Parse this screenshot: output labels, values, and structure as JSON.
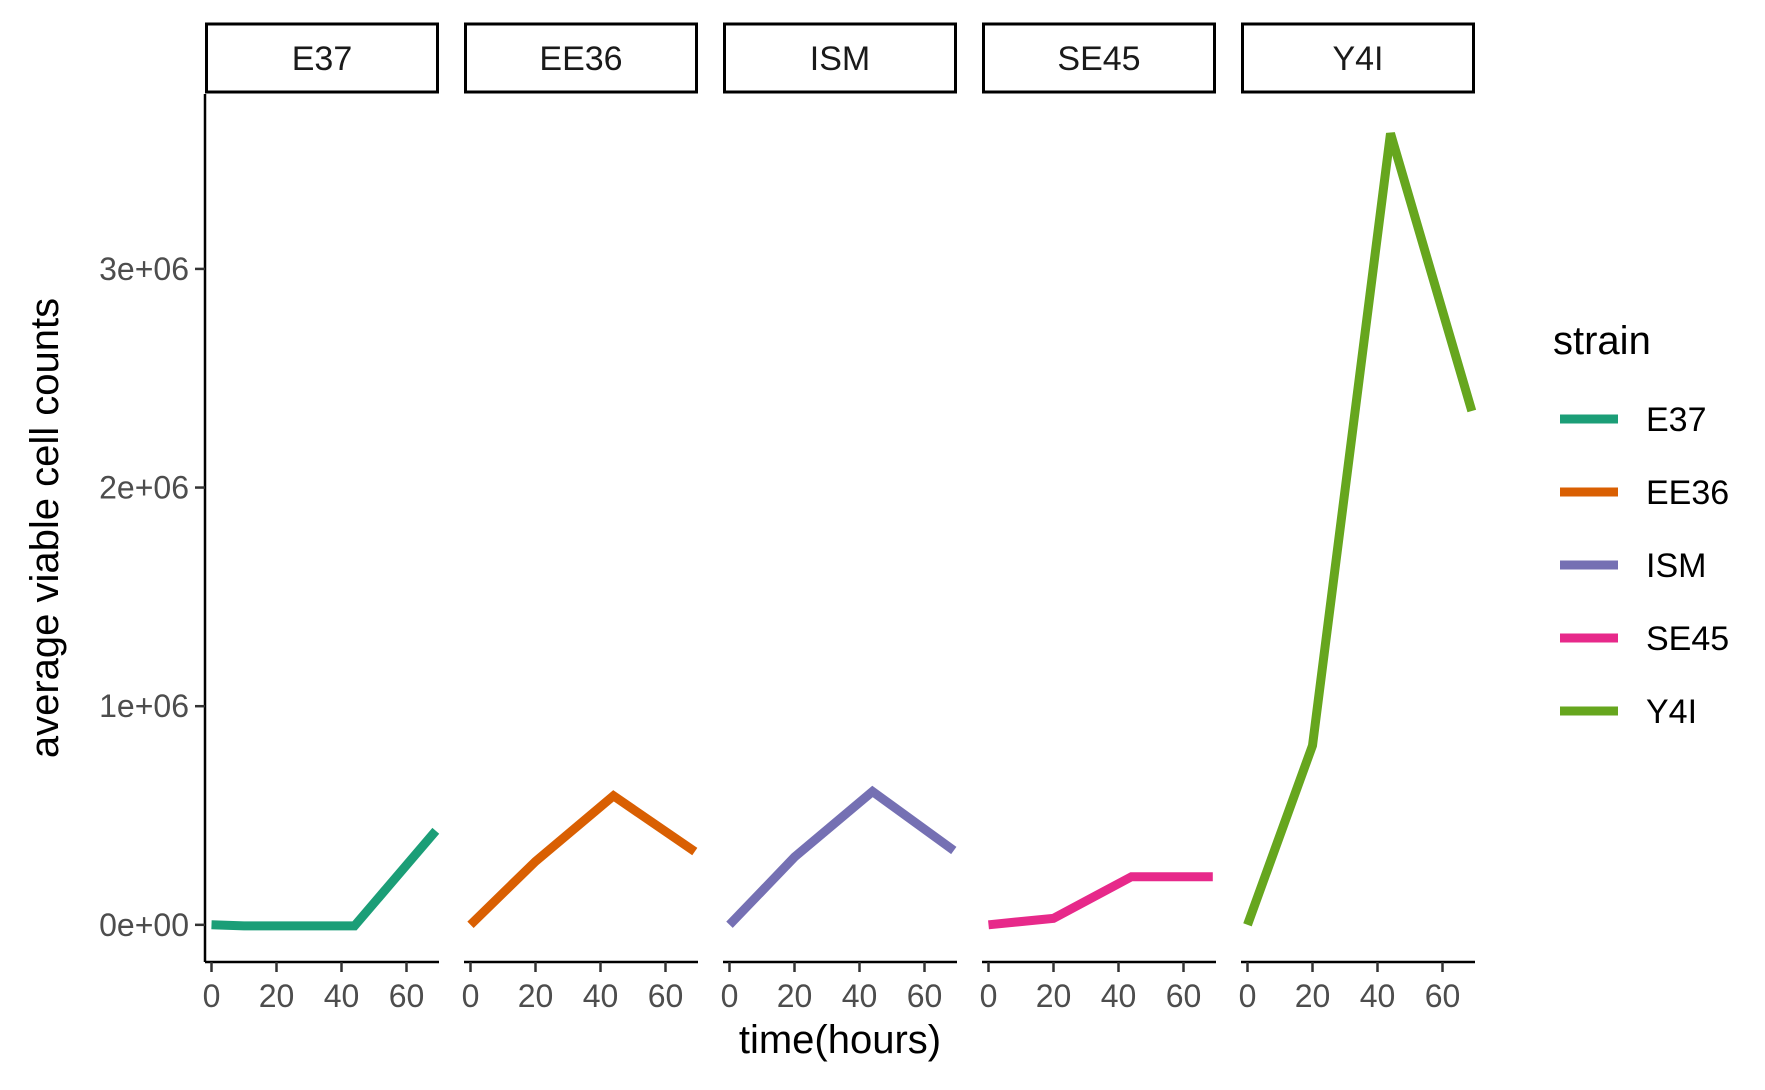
{
  "chart_data": {
    "type": "line",
    "facet_by": "strain",
    "facets": [
      "E37",
      "EE36",
      "ISM",
      "SE45",
      "Y4I"
    ],
    "xlabel": "time(hours)",
    "ylabel": "average viable cell counts",
    "x_ticks": [
      0,
      20,
      40,
      60
    ],
    "xlim": [
      -2,
      70
    ],
    "y_ticks": [
      0,
      1000000,
      2000000,
      3000000
    ],
    "y_tick_labels": [
      "0e+00",
      "1e+06",
      "2e+06",
      "3e+06"
    ],
    "ylim": [
      -170000,
      3800000
    ],
    "legend": {
      "title": "strain",
      "position": "right"
    },
    "grid": false,
    "series": [
      {
        "name": "E37",
        "color": "#1b9e77",
        "x": [
          0,
          10,
          44,
          69
        ],
        "y": [
          0,
          -5000,
          -5000,
          430000
        ]
      },
      {
        "name": "EE36",
        "color": "#d95f02",
        "x": [
          0,
          20,
          44,
          69
        ],
        "y": [
          0,
          290000,
          590000,
          335000
        ]
      },
      {
        "name": "ISM",
        "color": "#7570b3",
        "x": [
          0,
          20,
          44,
          69
        ],
        "y": [
          0,
          310000,
          610000,
          340000
        ]
      },
      {
        "name": "SE45",
        "color": "#e7298a",
        "x": [
          0,
          20,
          44,
          69
        ],
        "y": [
          0,
          30000,
          220000,
          220000
        ]
      },
      {
        "name": "Y4I",
        "color": "#66a61e",
        "x": [
          0,
          20,
          44,
          69
        ],
        "y": [
          0,
          820000,
          3620000,
          2350000
        ]
      }
    ]
  }
}
